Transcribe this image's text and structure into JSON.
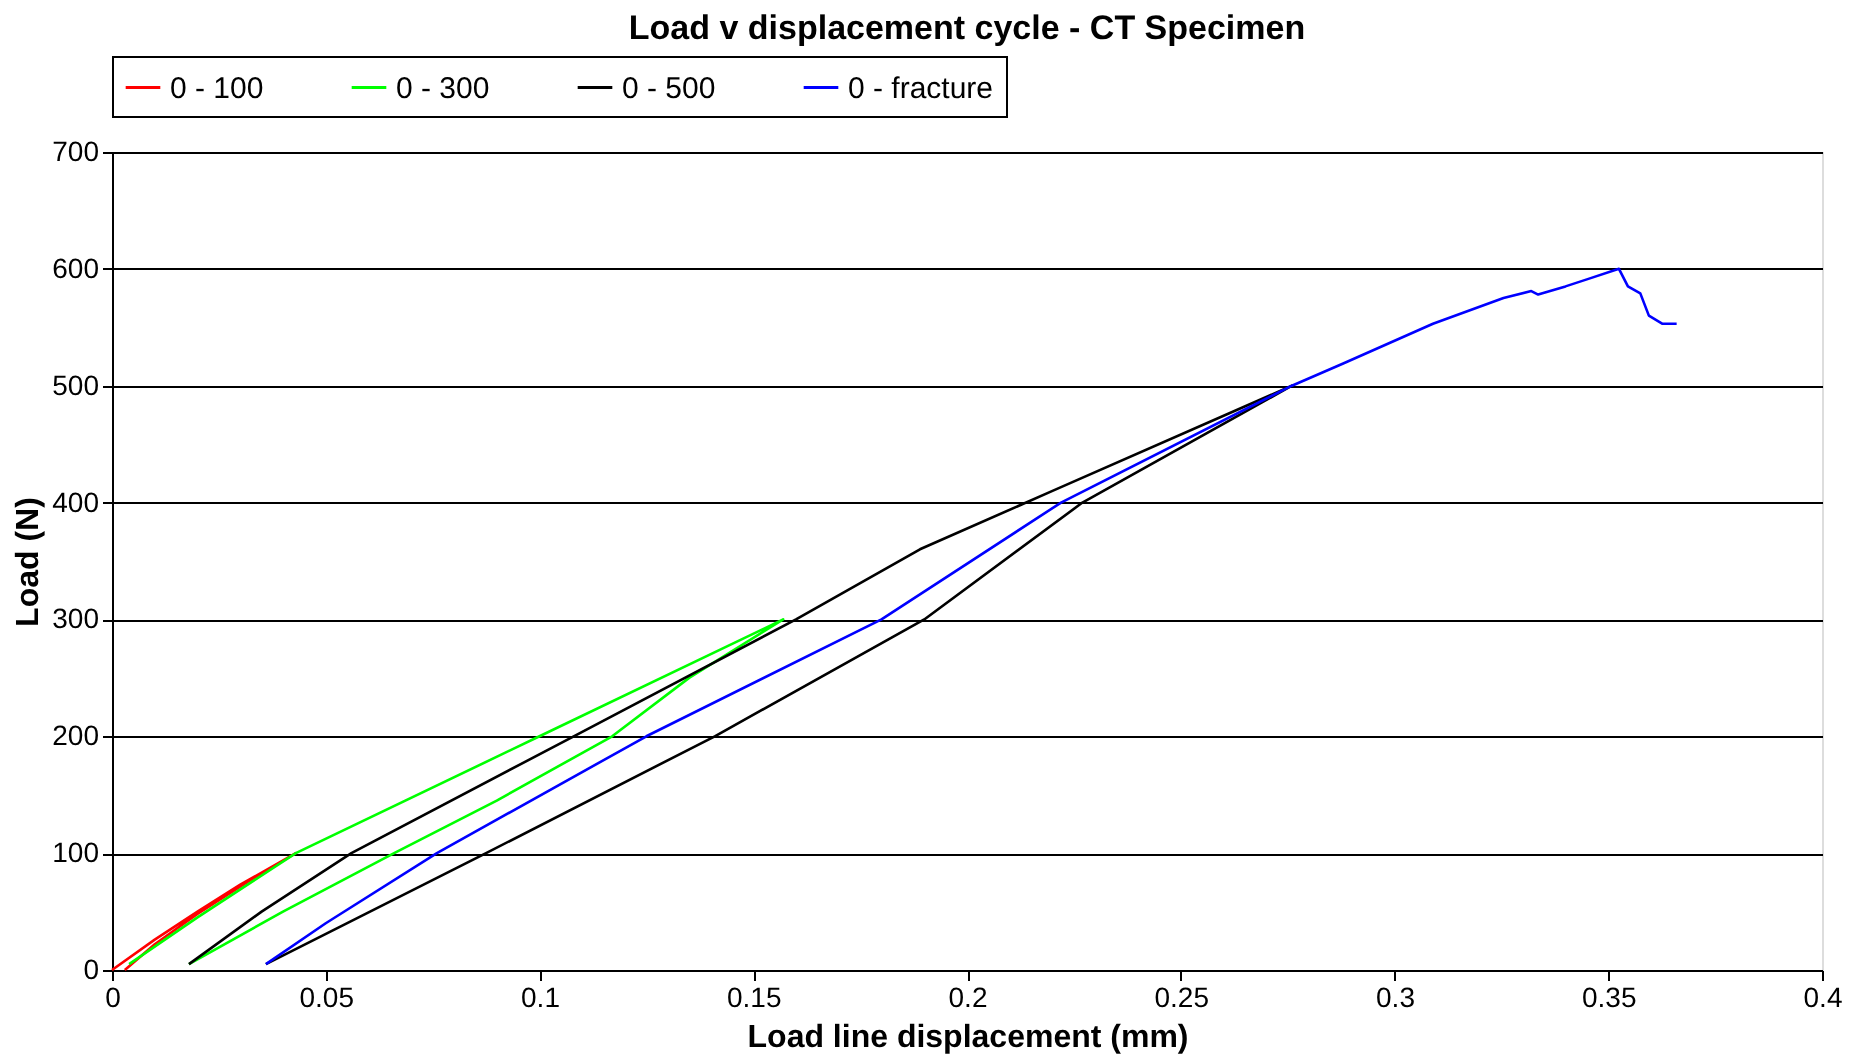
{
  "chart_data": {
    "type": "line",
    "title": "Load v displacement cycle - CT Specimen",
    "xlabel": "Load line displacement (mm)",
    "ylabel": "Load (N)",
    "xlim": [
      0,
      0.4
    ],
    "xticks": [
      0,
      0.05,
      0.1,
      0.15,
      0.2,
      0.25,
      0.3,
      0.35,
      0.4
    ],
    "ylim": [
      0,
      700
    ],
    "yticks": [
      0,
      100,
      200,
      300,
      400,
      500,
      600,
      700
    ],
    "grid": "y",
    "legend": "top",
    "marker": "none",
    "line_style": "solid",
    "series": [
      {
        "name": "0 - 100",
        "color": "#ff0000",
        "x": [
          0,
          0.01,
          0.02,
          0.03,
          0.043,
          0.032,
          0.02,
          0.01,
          0.003
        ],
        "values": [
          0,
          26,
          50,
          73,
          100,
          76,
          48,
          22,
          0
        ]
      },
      {
        "name": "0 - 300",
        "color": "#00ff00",
        "x": [
          0.004,
          0.02,
          0.043,
          0.1,
          0.157,
          0.135,
          0.117,
          0.09,
          0.066,
          0.04,
          0.018
        ],
        "values": [
          5,
          45,
          100,
          200,
          300,
          250,
          200,
          145,
          100,
          50,
          5
        ]
      },
      {
        "name": "0 - 500",
        "color": "#000000",
        "x": [
          0.018,
          0.035,
          0.056,
          0.108,
          0.16,
          0.189,
          0.22,
          0.276,
          0.227,
          0.19,
          0.141,
          0.0875,
          0.036
        ],
        "values": [
          5,
          50,
          100,
          200,
          300,
          360,
          410,
          500,
          400,
          300,
          200,
          100,
          5
        ]
      },
      {
        "name": "0 - fracture",
        "color": "#0000ff",
        "x": [
          0.036,
          0.05,
          0.076,
          0.125,
          0.18,
          0.222,
          0.276,
          0.288,
          0.309,
          0.3255,
          0.332,
          0.3336,
          0.34,
          0.345,
          0.3525,
          0.3546,
          0.3575,
          0.3595,
          0.3627,
          0.366
        ],
        "values": [
          5,
          40,
          100,
          200,
          300,
          400,
          500,
          519,
          553,
          575,
          581,
          578,
          585,
          591,
          600,
          585,
          579,
          560,
          553,
          553
        ]
      }
    ]
  }
}
